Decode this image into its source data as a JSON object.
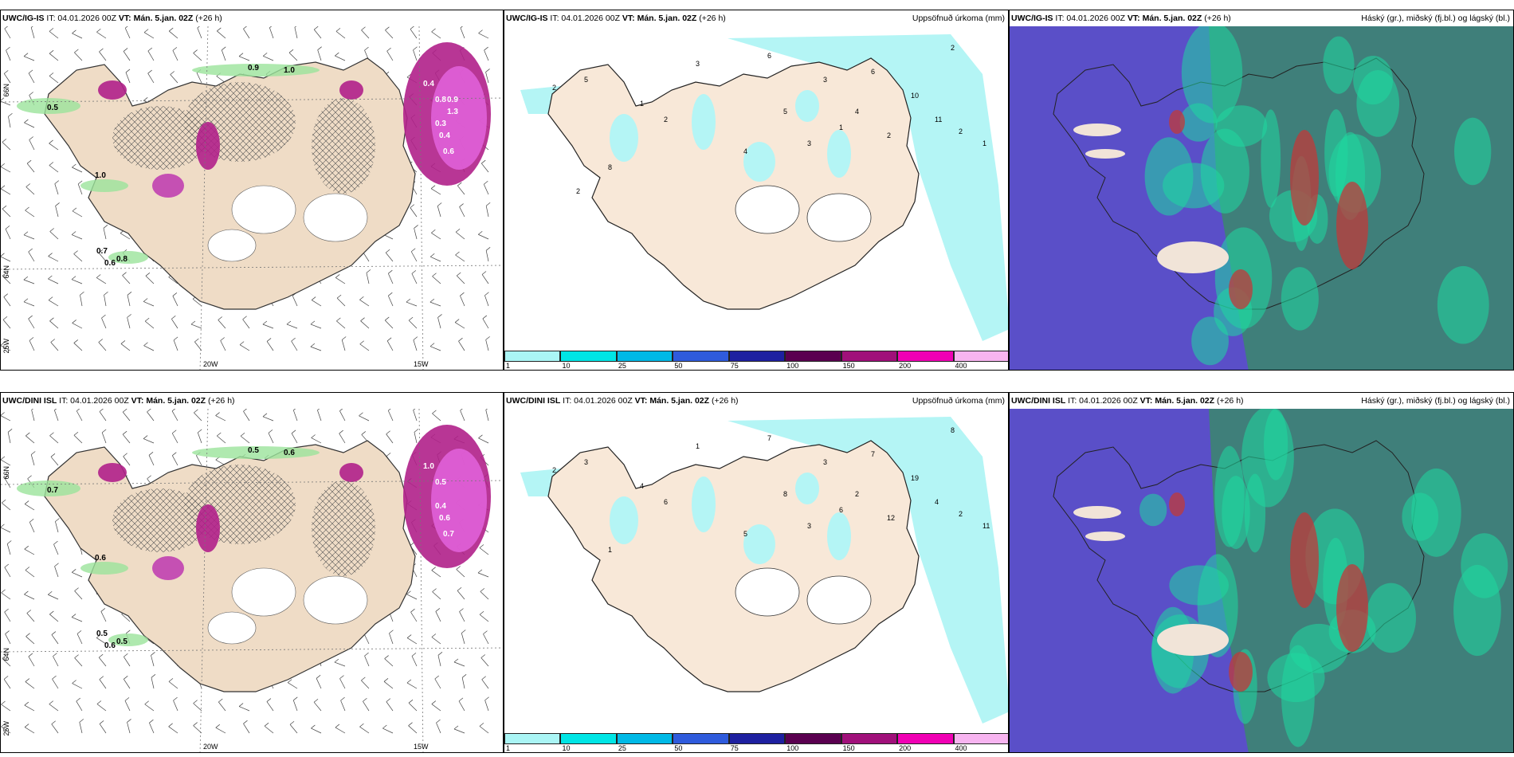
{
  "rows": [
    {
      "model": "UWC/IG-IS",
      "it": "IT: 04.01.2026 00Z",
      "vt_label": "VT:",
      "vt": "Mán. 5.jan. 02Z",
      "lead": "(+26 h)"
    },
    {
      "model": "UWC/DINI ISL",
      "it": "IT: 04.01.2026 00Z",
      "vt_label": "VT:",
      "vt": "Mán. 5.jan. 02Z",
      "lead": "(+26 h)"
    }
  ],
  "titles": {
    "precip": "Uppsöfnuð úrkoma (mm)",
    "cloud": "Háský (gr.), miðský (fj.bl.) og lágský (bl.)"
  },
  "lon_labels": [
    "20W",
    "15W"
  ],
  "lat_labels": [
    "66N",
    "64N",
    "25W"
  ],
  "colorbar": {
    "ticks": [
      "1",
      "10",
      "25",
      "50",
      "75",
      "100",
      "150",
      "200",
      "400"
    ],
    "colors": [
      "#aaf5f5",
      "#00e5e5",
      "#00b9e6",
      "#2f5bdc",
      "#1e20a0",
      "#5a0050",
      "#a0107a",
      "#f000b4",
      "#f7b4f0"
    ]
  },
  "wind_labels_top": [
    "0.5",
    "0.7",
    "0.6",
    "0.8",
    "1.0",
    "0.9",
    "1.0",
    "0.4",
    "0.3",
    "0.4",
    "0.6",
    "0.8",
    "0.9",
    "1.3"
  ],
  "wind_labels_bottom": [
    "0.7",
    "0.5",
    "0.6",
    "0.5",
    "0.6",
    "0.5",
    "0.6",
    "1.0",
    "0.4",
    "0.6",
    "0.7",
    "0.5"
  ],
  "precip_labels_top": [
    "2",
    "3",
    "5",
    "1",
    "2",
    "6",
    "3",
    "4",
    "2",
    "10",
    "11",
    "2",
    "1",
    "2",
    "6",
    "5",
    "3",
    "1",
    "4",
    "8",
    "2"
  ],
  "precip_labels_bottom": [
    "2",
    "1",
    "3",
    "4",
    "6",
    "7",
    "3",
    "2",
    "12",
    "19",
    "4",
    "2",
    "11",
    "8",
    "7",
    "8",
    "3",
    "6",
    "5",
    "1"
  ]
}
